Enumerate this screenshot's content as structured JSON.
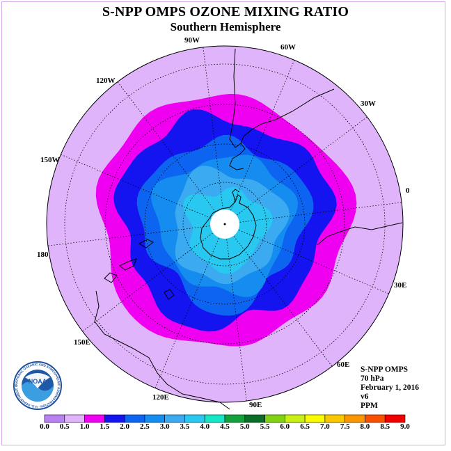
{
  "title": "S-NPP OMPS OZONE MIXING RATIO",
  "subtitle": "Southern Hemisphere",
  "longitude_labels": [
    "90W",
    "60W",
    "30W",
    "0",
    "30E",
    "60E",
    "90E",
    "120E",
    "150E",
    "180",
    "150W",
    "120W"
  ],
  "info": {
    "instrument": "S-NPP OMPS",
    "level": "70 hPa",
    "date": "February 1, 2016",
    "version": "v6",
    "units": "PPM"
  },
  "logo": {
    "text": "NOAA",
    "ring_text": "NATIONAL OCEANIC AND ATMOSPHERIC ADMINISTRATION · U.S. DEPARTMENT OF COMMERCE"
  },
  "colorbar": {
    "labels": [
      "0.0",
      "0.5",
      "1.0",
      "1.5",
      "2.0",
      "2.5",
      "3.0",
      "3.5",
      "4.0",
      "4.5",
      "5.0",
      "5.5",
      "6.0",
      "6.5",
      "7.0",
      "7.5",
      "8.0",
      "8.5",
      "9.0"
    ],
    "colors": [
      "#b882f2",
      "#e0b4fa",
      "#f000f0",
      "#1414f0",
      "#0c64f0",
      "#148cf0",
      "#3caaf0",
      "#28c8f0",
      "#14e6c8",
      "#14a03c",
      "#0a6e28",
      "#82d214",
      "#c8f014",
      "#fafa00",
      "#fac800",
      "#fa9600",
      "#fa5000",
      "#f00000",
      "#8c5032"
    ]
  },
  "map_data": {
    "projection": "south-polar-stereographic",
    "units": "PPM",
    "filled_levels": [
      {
        "range": "1.0-1.5",
        "color": "#f000f0"
      },
      {
        "range": "1.5-2.0",
        "color": "#1414f0"
      },
      {
        "range": "2.0-2.5",
        "color": "#0c64f0"
      },
      {
        "range": "2.5-3.0",
        "color": "#148cf0"
      },
      {
        "range": "3.0-3.5",
        "color": "#3caaf0"
      },
      {
        "range": "3.5-4.0",
        "color": "#28c8f0"
      }
    ],
    "background_level": {
      "range": "0.5-1.0",
      "color": "#e0b4fa"
    }
  }
}
